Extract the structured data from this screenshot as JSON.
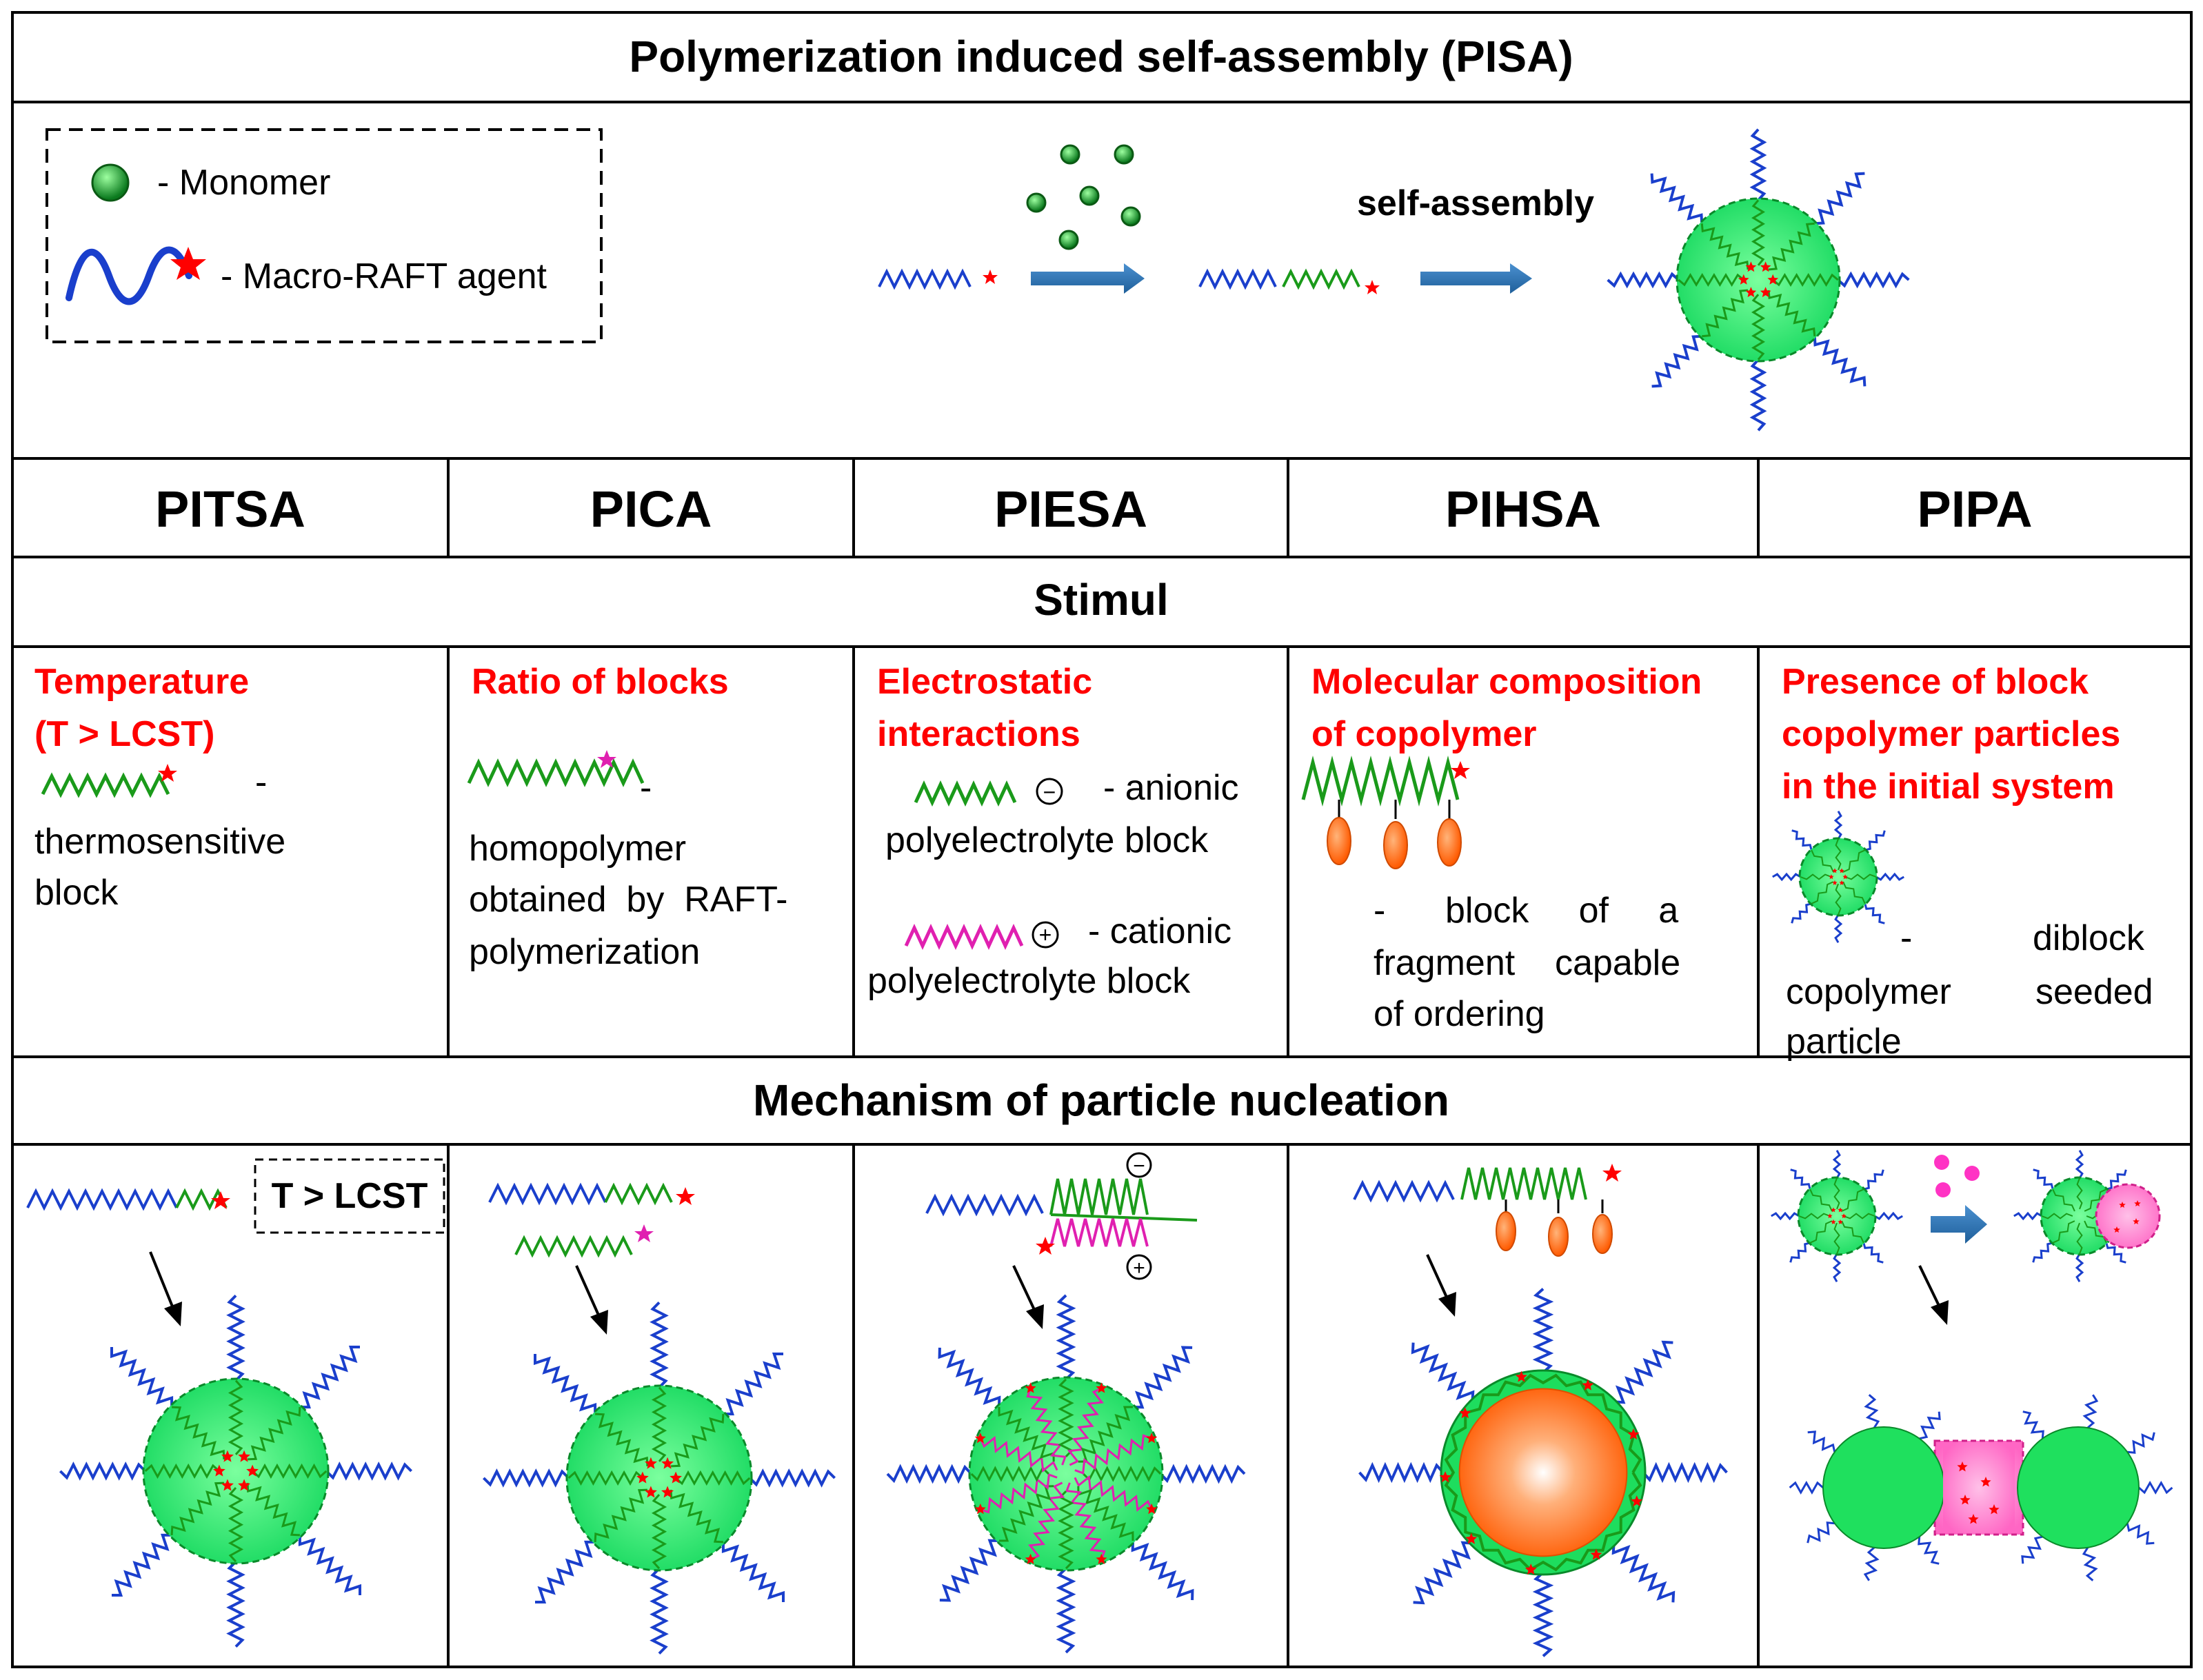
{
  "title": "Polymerization induced self-assembly (PISA)",
  "legend": {
    "monomer_label": "- Monomer",
    "macro_raft_label": "- Macro-RAFT agent"
  },
  "scheme": {
    "self_assembly_label": "self-assembly"
  },
  "columns": [
    "PITSA",
    "PICA",
    "PIESA",
    "PIHSA",
    "PIPA"
  ],
  "stimul_header": "Stimul",
  "mechanism_header": "Mechanism of particle nucleation",
  "stimuli": {
    "pitsa": {
      "title_lines": [
        "Temperature",
        "(T > LCST)"
      ],
      "dash": "-",
      "desc_lines": [
        "thermosensitive",
        "block"
      ]
    },
    "pica": {
      "title": "Ratio of blocks",
      "dash": "-",
      "desc_lines": [
        "homopolymer",
        "obtained  by  RAFT-",
        "polymerization"
      ]
    },
    "piesa": {
      "title_lines": [
        "Electrostatic",
        "interactions"
      ],
      "anionic_label": "- anionic",
      "anionic_desc": "polyelectrolyte block",
      "cationic_label": "- cationic",
      "cationic_desc": "polyelectrolyte block",
      "minus_sign": "−",
      "plus_sign": "+"
    },
    "pihsa": {
      "title_lines": [
        "Molecular composition",
        "of copolymer"
      ],
      "desc_line1": "-      block     of     a",
      "desc_line2": "fragment    capable",
      "desc_line3": "of ordering"
    },
    "pipa": {
      "title_lines": [
        "Presence of block",
        "copolymer particles",
        "in the initial system"
      ],
      "desc_word1": "diblock",
      "dash": "-",
      "desc_word2": "copolymer",
      "desc_word3": "seeded",
      "desc_word4": "particle"
    }
  },
  "mechanism": {
    "lcst_box_label": "T > LCST",
    "minus_sign": "−",
    "plus_sign": "+"
  },
  "colors": {
    "red_text": "#ff0000",
    "blue_chain": "#1a3fcc",
    "green_chain": "#1a9a1a",
    "magenta_chain": "#e020b0",
    "core_green": "#3df07a",
    "core_orange": "#ff6a1a",
    "arrow_blue": "#2e75b6"
  }
}
